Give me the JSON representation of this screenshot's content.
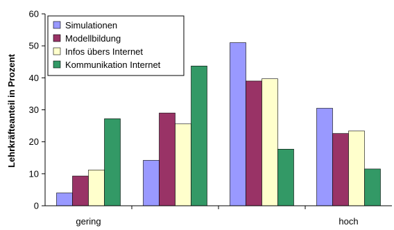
{
  "chart_data": {
    "type": "bar",
    "categories": [
      "gering",
      "",
      "",
      "hoch"
    ],
    "ylabel": "Lehrkräfteanteil in Prozent",
    "xlabel": "",
    "ylim": [
      0,
      60
    ],
    "yticks": [
      0,
      10,
      20,
      30,
      40,
      50,
      60
    ],
    "grid": false,
    "legend_position": "top-left",
    "series": [
      {
        "name": "Simulationen",
        "color": "#9999ff",
        "values": [
          4,
          14.2,
          51,
          30.5
        ]
      },
      {
        "name": "Modellbildung",
        "color": "#993366",
        "values": [
          9.3,
          29,
          39,
          22.6
        ]
      },
      {
        "name": "Infos übers Internet",
        "color": "#ffffcc",
        "values": [
          11.2,
          25.6,
          39.7,
          23.4
        ]
      },
      {
        "name": "Kommunikation Internet",
        "color": "#339966",
        "values": [
          27.2,
          43.7,
          17.7,
          11.5
        ]
      }
    ]
  }
}
